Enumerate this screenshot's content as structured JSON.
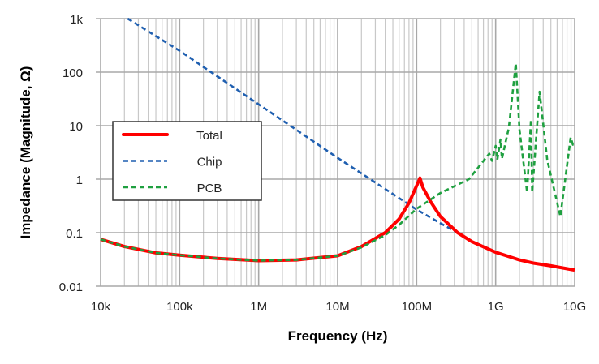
{
  "chart_data": {
    "type": "line",
    "title": "",
    "xlabel": "Frequency (Hz)",
    "ylabel": "Impedance (Magnitude, Ω)",
    "xscale": "log",
    "yscale": "log",
    "xlim": [
      10000,
      10000000000
    ],
    "ylim": [
      0.01,
      1000
    ],
    "x_ticks": [
      {
        "value": 10000,
        "label": "10k"
      },
      {
        "value": 100000,
        "label": "100k"
      },
      {
        "value": 1000000,
        "label": "1M"
      },
      {
        "value": 10000000,
        "label": "10M"
      },
      {
        "value": 100000000,
        "label": "100M"
      },
      {
        "value": 1000000000,
        "label": "1G"
      },
      {
        "value": 10000000000,
        "label": "10G"
      }
    ],
    "y_ticks": [
      {
        "value": 0.01,
        "label": "0.01"
      },
      {
        "value": 0.1,
        "label": "0.1"
      },
      {
        "value": 1,
        "label": "1"
      },
      {
        "value": 10,
        "label": "10"
      },
      {
        "value": 100,
        "label": "100"
      },
      {
        "value": 1000,
        "label": "1k"
      }
    ],
    "grid": true,
    "legend_position": "center-left",
    "series": [
      {
        "name": "Total",
        "color": "#ff0000",
        "style": "solid",
        "points": [
          [
            10000.0,
            0.075
          ],
          [
            20000.0,
            0.055
          ],
          [
            50000.0,
            0.042
          ],
          [
            100000.0,
            0.038
          ],
          [
            300000.0,
            0.033
          ],
          [
            1000000.0,
            0.03
          ],
          [
            3000000.0,
            0.031
          ],
          [
            10000000.0,
            0.037
          ],
          [
            20000000.0,
            0.055
          ],
          [
            40000000.0,
            0.1
          ],
          [
            60000000.0,
            0.18
          ],
          [
            80000000.0,
            0.36
          ],
          [
            100000000.0,
            0.75
          ],
          [
            110000000.0,
            1.05
          ],
          [
            120000000.0,
            0.7
          ],
          [
            150000000.0,
            0.38
          ],
          [
            200000000.0,
            0.2
          ],
          [
            330000000.0,
            0.1
          ],
          [
            500000000.0,
            0.068
          ],
          [
            1000000000.0,
            0.043
          ],
          [
            2000000000.0,
            0.031
          ],
          [
            3000000000.0,
            0.027
          ],
          [
            5000000000.0,
            0.024
          ],
          [
            10000000000.0,
            0.02
          ]
        ]
      },
      {
        "name": "Chip",
        "color": "#1f5fb0",
        "style": "dashed",
        "points": [
          [
            22000.0,
            1000
          ],
          [
            100000.0,
            250
          ],
          [
            1000000.0,
            25
          ],
          [
            10000000.0,
            2.5
          ],
          [
            100000000.0,
            0.27
          ],
          [
            200000000.0,
            0.15
          ],
          [
            330000000.0,
            0.1
          ],
          [
            500000000.0,
            0.068
          ],
          [
            1000000000.0,
            0.043
          ],
          [
            2000000000.0,
            0.031
          ],
          [
            3000000000.0,
            0.027
          ],
          [
            5000000000.0,
            0.024
          ],
          [
            10000000000.0,
            0.02
          ]
        ]
      },
      {
        "name": "PCB",
        "color": "#1fa040",
        "style": "dashed",
        "points": [
          [
            10000.0,
            0.075
          ],
          [
            20000.0,
            0.055
          ],
          [
            50000.0,
            0.042
          ],
          [
            100000.0,
            0.038
          ],
          [
            300000.0,
            0.033
          ],
          [
            1000000.0,
            0.03
          ],
          [
            3000000.0,
            0.031
          ],
          [
            10000000.0,
            0.037
          ],
          [
            20000000.0,
            0.053
          ],
          [
            40000000.0,
            0.09
          ],
          [
            60000000.0,
            0.14
          ],
          [
            100000000.0,
            0.28
          ],
          [
            200000000.0,
            0.55
          ],
          [
            460000000.0,
            1.0
          ],
          [
            830000000.0,
            3.0
          ],
          [
            900000000.0,
            2.2
          ],
          [
            1000000000.0,
            4.2
          ],
          [
            1050000000.0,
            2.3
          ],
          [
            1150000000.0,
            5.5
          ],
          [
            1200000000.0,
            2.4
          ],
          [
            1470000000.0,
            9.3
          ],
          [
            1800000000.0,
            147
          ],
          [
            2000000000.0,
            8.5
          ],
          [
            2500000000.0,
            0.57
          ],
          [
            2800000000.0,
            13
          ],
          [
            2900000000.0,
            0.57
          ],
          [
            3600000000.0,
            43
          ],
          [
            4500000000.0,
            2.3
          ],
          [
            6600000000.0,
            0.2
          ],
          [
            8900000000.0,
            6
          ],
          [
            9500000000.0,
            4.4
          ],
          [
            10000000000.0,
            5
          ]
        ]
      }
    ]
  }
}
